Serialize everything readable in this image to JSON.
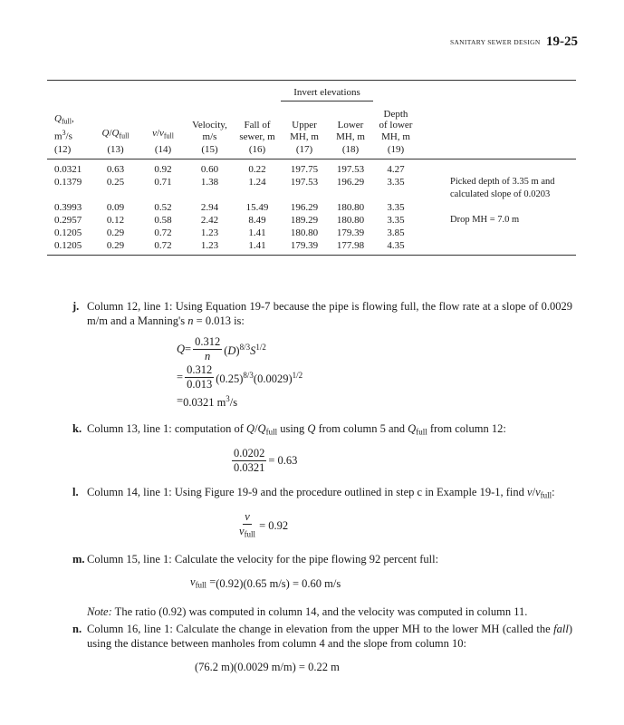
{
  "header": {
    "section": "SANITARY SEWER DESIGN",
    "page": "19-25"
  },
  "table": {
    "group_header": "Invert elevations",
    "columns": [
      {
        "label": [
          [
            {
              "t": "Q",
              "s": "i"
            },
            {
              "t": "full",
              "s": "sub"
            },
            ","
          ],
          [
            "m",
            {
              "t": "3",
              "s": "sup"
            },
            "/s"
          ]
        ],
        "number": "(12)"
      },
      {
        "label": [
          [
            {
              "t": "Q",
              "s": "i"
            },
            "/",
            {
              "t": "Q",
              "s": "i"
            },
            {
              "t": "full",
              "s": "sub"
            }
          ]
        ],
        "number": "(13)"
      },
      {
        "label": [
          [
            {
              "t": "v",
              "s": "i"
            },
            "/",
            {
              "t": "v",
              "s": "i"
            },
            {
              "t": "full",
              "s": "sub"
            }
          ]
        ],
        "number": "(14)"
      },
      {
        "label": [
          [
            "Velocity,"
          ],
          [
            "m/s"
          ]
        ],
        "number": "(15)"
      },
      {
        "label": [
          [
            "Fall of"
          ],
          [
            "sewer, m"
          ]
        ],
        "number": "(16)"
      },
      {
        "label": [
          [
            "Upper"
          ],
          [
            "MH, m"
          ]
        ],
        "number": "(17)"
      },
      {
        "label": [
          [
            "Lower"
          ],
          [
            "MH, m"
          ]
        ],
        "number": "(18)"
      },
      {
        "label": [
          [
            "Depth"
          ],
          [
            "of lower"
          ],
          [
            "MH, m"
          ]
        ],
        "number": "(19)"
      }
    ],
    "rows": [
      {
        "cells": [
          "0.0321",
          "0.63",
          "0.92",
          "0.60",
          "0.22",
          "197.75",
          "197.53",
          "4.27"
        ]
      },
      {
        "cells": [
          "0.1379",
          "0.25",
          "0.71",
          "1.38",
          "1.24",
          "197.53",
          "196.29",
          "3.35"
        ],
        "note": "Picked depth of 3.35 m and calculated slope of 0.0203"
      },
      {
        "cells": [
          "0.3993",
          "0.09",
          "0.52",
          "2.94",
          "15.49",
          "196.29",
          "180.80",
          "3.35"
        ]
      },
      {
        "cells": [
          "0.2957",
          "0.12",
          "0.58",
          "2.42",
          "8.49",
          "189.29",
          "180.80",
          "3.35"
        ],
        "note": "Drop MH = 7.0 m"
      },
      {
        "cells": [
          "0.1205",
          "0.29",
          "0.72",
          "1.23",
          "1.41",
          "180.80",
          "179.39",
          "3.85"
        ]
      },
      {
        "cells": [
          "0.1205",
          "0.29",
          "0.72",
          "1.23",
          "1.41",
          "179.39",
          "177.98",
          "4.35"
        ]
      }
    ]
  },
  "items": [
    {
      "label": "j.",
      "blocks": [
        {
          "kind": "p",
          "text": [
            "Column 12, line 1: Using Equation 19-7 because the pipe is flowing full, the flow rate at a slope of 0.0029 m/m and a Manning's ",
            {
              "t": "n",
              "s": "i"
            },
            " = 0.013 is:"
          ]
        },
        {
          "kind": "eq",
          "lines": [
            {
              "lhs": [
                {
                  "t": "Q",
                  "s": "i"
                },
                "="
              ],
              "frac": {
                "num": [
                  "0.312"
                ],
                "den": [
                  {
                    "t": "n",
                    "s": "i"
                  }
                ]
              },
              "rest": [
                "(",
                {
                  "t": "D",
                  "s": "i"
                },
                ")",
                {
                  "t": "8/3",
                  "s": "sup"
                },
                {
                  "t": "S",
                  "s": "i"
                },
                {
                  "t": "1/2",
                  "s": "sup"
                }
              ]
            },
            {
              "lhs": [
                "="
              ],
              "frac": {
                "num": [
                  "0.312"
                ],
                "den": [
                  "0.013"
                ]
              },
              "rest": [
                "(0.25)",
                {
                  "t": "8/3",
                  "s": "sup"
                },
                "(0.0029)",
                {
                  "t": "1/2",
                  "s": "sup"
                }
              ]
            },
            {
              "lhs": [
                "="
              ],
              "rest": [
                "0.0321 m",
                {
                  "t": "3",
                  "s": "sup"
                },
                "/s"
              ]
            }
          ]
        }
      ]
    },
    {
      "label": "k.",
      "blocks": [
        {
          "kind": "p",
          "text": [
            "Column 13, line 1: computation of ",
            {
              "t": "Q",
              "s": "i"
            },
            "/",
            {
              "t": "Q",
              "s": "i"
            },
            {
              "t": "full",
              "s": "sub"
            },
            " using ",
            {
              "t": "Q",
              "s": "i"
            },
            " from column 5 and ",
            {
              "t": "Q",
              "s": "i"
            },
            {
              "t": "full",
              "s": "sub"
            },
            " from column 12:"
          ]
        },
        {
          "kind": "eq",
          "lines": [
            {
              "frac": {
                "num": [
                  "0.0202"
                ],
                "den": [
                  "0.0321"
                ]
              },
              "rest": [
                "= 0.63"
              ]
            }
          ]
        }
      ]
    },
    {
      "label": "l.",
      "blocks": [
        {
          "kind": "p",
          "text": [
            "Column 14, line 1: Using Figure 19-9 and the procedure outlined in step c in Example 19-1, find ",
            {
              "t": "v",
              "s": "i"
            },
            "/",
            {
              "t": "v",
              "s": "i"
            },
            {
              "t": "full",
              "s": "sub"
            },
            ":"
          ]
        },
        {
          "kind": "eq",
          "lines": [
            {
              "frac": {
                "num": [
                  {
                    "t": "v",
                    "s": "i"
                  }
                ],
                "den": [
                  {
                    "t": "v",
                    "s": "i"
                  },
                  {
                    "t": "full",
                    "s": "sub"
                  }
                ]
              },
              "rest": [
                "= 0.92"
              ]
            }
          ]
        }
      ]
    },
    {
      "label": "m.",
      "blocks": [
        {
          "kind": "p",
          "text": [
            "Column 15, line 1: Calculate the velocity for the pipe flowing 92 percent full:"
          ]
        },
        {
          "kind": "eq",
          "lines": [
            {
              "lhs": [
                {
                  "t": "v",
                  "s": "i"
                },
                {
                  "t": "full",
                  "s": "sub"
                },
                " = "
              ],
              "rest": [
                "(0.92)(0.65 m/s) = 0.60 m/s"
              ]
            }
          ]
        },
        {
          "kind": "p",
          "text": [
            {
              "t": "Note:",
              "s": "i"
            },
            " The ratio (0.92) was computed in column 14, and the velocity was computed in column 11."
          ]
        }
      ]
    },
    {
      "label": "n.",
      "blocks": [
        {
          "kind": "p",
          "text": [
            "Column 16, line 1: Calculate the change in elevation from the upper MH to the lower MH (called the ",
            {
              "t": "fall",
              "s": "i"
            },
            ") using the distance between manholes from column 4 and the slope from column 10:"
          ]
        },
        {
          "kind": "eq",
          "lines": [
            {
              "rest": [
                "(76.2 m)(0.0029 m/m) = 0.22 m"
              ]
            }
          ]
        }
      ]
    }
  ]
}
